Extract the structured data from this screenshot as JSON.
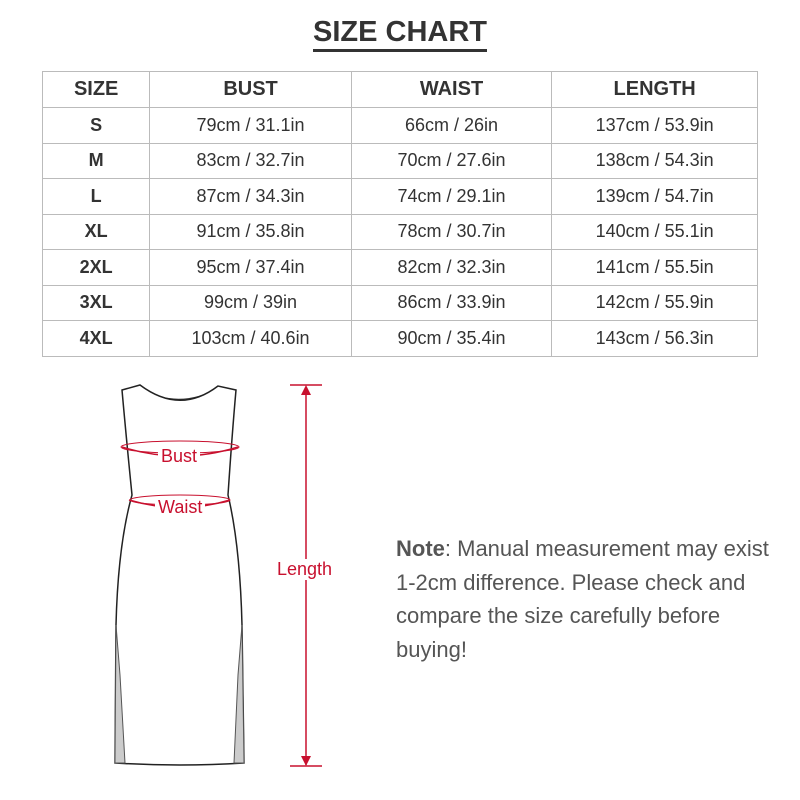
{
  "title": "SIZE CHART",
  "table": {
    "headers": [
      "SIZE",
      "BUST",
      "WAIST",
      "LENGTH"
    ],
    "rows": [
      [
        "S",
        "79cm / 31.1in",
        "66cm / 26in",
        "137cm / 53.9in"
      ],
      [
        "M",
        "83cm / 32.7in",
        "70cm / 27.6in",
        "138cm / 54.3in"
      ],
      [
        "L",
        "87cm / 34.3in",
        "74cm / 29.1in",
        "139cm / 54.7in"
      ],
      [
        "XL",
        "91cm / 35.8in",
        "78cm / 30.7in",
        "140cm / 55.1in"
      ],
      [
        "2XL",
        "95cm / 37.4in",
        "82cm / 32.3in",
        "141cm / 55.5in"
      ],
      [
        "3XL",
        "99cm / 39in",
        "86cm / 33.9in",
        "142cm / 55.9in"
      ],
      [
        "4XL",
        "103cm / 40.6in",
        "90cm / 35.4in",
        "143cm / 56.3in"
      ]
    ]
  },
  "diagram": {
    "bust": "Bust",
    "waist": "Waist",
    "length": "Length",
    "accent": "#c8102e"
  },
  "note": {
    "label": "Note",
    "text": ": Manual measurement may exist 1-2cm difference. Please check and compare the size carefully before buying!"
  }
}
